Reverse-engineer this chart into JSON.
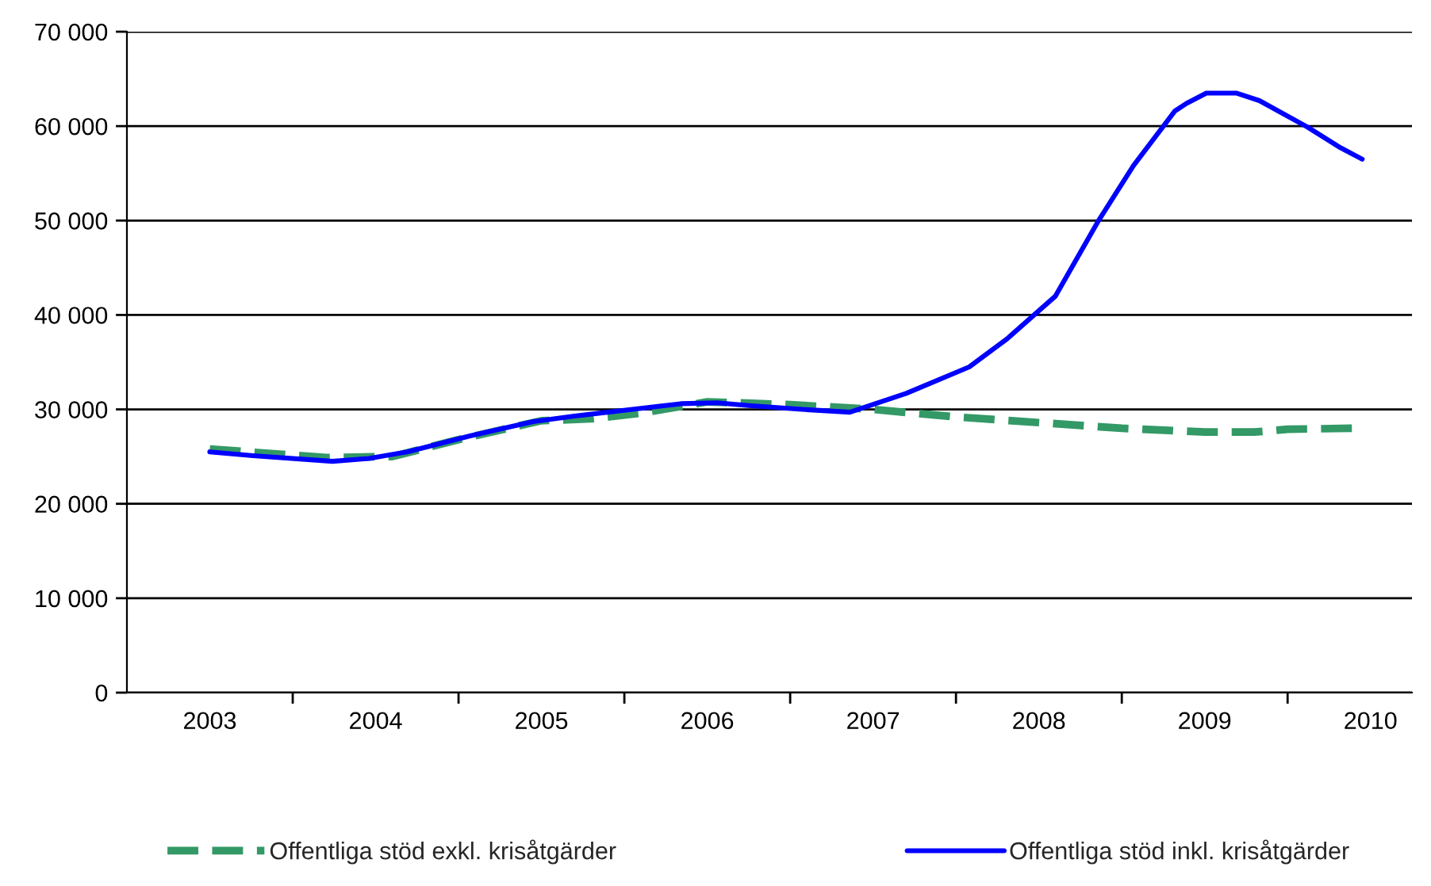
{
  "chart_data": {
    "type": "line",
    "xlim": [
      2002.5,
      2010.25
    ],
    "xticks": [
      {
        "value": 2003,
        "label": "2003"
      },
      {
        "value": 2003.5,
        "label": null
      },
      {
        "value": 2004,
        "label": "2004"
      },
      {
        "value": 2004.5,
        "label": null
      },
      {
        "value": 2005,
        "label": "2005"
      },
      {
        "value": 2005.5,
        "label": null
      },
      {
        "value": 2006,
        "label": "2006"
      },
      {
        "value": 2006.5,
        "label": null
      },
      {
        "value": 2007,
        "label": "2007"
      },
      {
        "value": 2007.5,
        "label": null
      },
      {
        "value": 2008,
        "label": "2008"
      },
      {
        "value": 2008.5,
        "label": null
      },
      {
        "value": 2009,
        "label": "2009"
      },
      {
        "value": 2009.5,
        "label": null
      },
      {
        "value": 2010,
        "label": "2010"
      }
    ],
    "ylim": [
      0,
      70000
    ],
    "yticks": [
      {
        "value": 0,
        "label": "0"
      },
      {
        "value": 10000,
        "label": "10 000"
      },
      {
        "value": 20000,
        "label": "20 000"
      },
      {
        "value": 30000,
        "label": "30 000"
      },
      {
        "value": 40000,
        "label": "40 000"
      },
      {
        "value": 50000,
        "label": "50 000"
      },
      {
        "value": 60000,
        "label": "60 000"
      },
      {
        "value": 70000,
        "label": "70 000"
      }
    ],
    "grid": "y",
    "legend": "bottom",
    "series": [
      {
        "name": "Offentliga stöd exkl. krisåtgärder",
        "color": "#339966",
        "line_style": "dashed",
        "x": [
          2003,
          2003.7,
          2004.1,
          2004.5,
          2005,
          2005.3,
          2005.6,
          2006,
          2006.5,
          2007,
          2007.5,
          2008,
          2008.5,
          2009,
          2009.3,
          2009.5,
          2009.9
        ],
        "values": [
          25800,
          24900,
          25000,
          26800,
          28800,
          29000,
          29600,
          30800,
          30500,
          30000,
          29200,
          28600,
          28000,
          27600,
          27600,
          27900,
          28000
        ]
      },
      {
        "name": "Offentliga stöd inkl. krisåtgärder",
        "color": "#0000ff",
        "line_style": "solid",
        "x": [
          2003,
          2003.26,
          2003.74,
          2003.96,
          2004.19,
          2004.57,
          2004.95,
          2005.2,
          2005.55,
          2005.84,
          2006.06,
          2006.25,
          2006.57,
          2006.86,
          2007.2,
          2007.58,
          2007.81,
          2008.1,
          2008.36,
          2008.57,
          2008.82,
          2008.89,
          2009.01,
          2009.19,
          2009.33,
          2009.62,
          2009.82,
          2009.95
        ],
        "values": [
          25500,
          25100,
          24500,
          24800,
          25500,
          27200,
          28700,
          29300,
          30000,
          30600,
          30700,
          30400,
          30000,
          29700,
          31700,
          34500,
          37500,
          42000,
          50000,
          55800,
          61600,
          62400,
          63500,
          63500,
          62700,
          59900,
          57700,
          56500
        ]
      }
    ]
  }
}
